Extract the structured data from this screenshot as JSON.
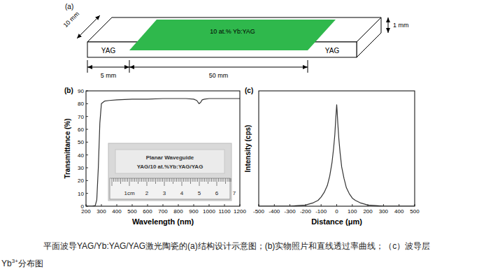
{
  "diagram": {
    "label": "(a)",
    "layer": "10 at.% Yb:YAG",
    "cladding": [
      "YAG",
      "YAG"
    ],
    "dimensions": {
      "width": "10 mm",
      "thickness": "1 mm",
      "cladding_length": "5 mm",
      "core_length": "50 mm"
    },
    "layer_color": "#2fb84c"
  },
  "chart_data": [
    {
      "type": "line",
      "title": "(b)",
      "x_label": "Wavelength (nm)",
      "y_label": "Transmittance (%)",
      "x": [
        200,
        220,
        240,
        260,
        270,
        280,
        290,
        300,
        320,
        350,
        400,
        500,
        600,
        700,
        800,
        850,
        900,
        920,
        935,
        945,
        955,
        970,
        1000,
        1100,
        1200
      ],
      "values": [
        0,
        0,
        0,
        0.5,
        5,
        30,
        65,
        80,
        82,
        82.5,
        83,
        83.5,
        83.5,
        84,
        84,
        84,
        83.5,
        82.5,
        80,
        81,
        83,
        83.5,
        84,
        84,
        84
      ],
      "color": "#333333",
      "xlim": [
        200,
        1200
      ],
      "ylim": [
        0,
        90
      ],
      "xticks": [
        200,
        300,
        400,
        500,
        600,
        700,
        800,
        900,
        1000,
        1100,
        1200
      ],
      "yticks": [
        0,
        10,
        20,
        30,
        40,
        50,
        60,
        70,
        80,
        90
      ],
      "grid": false
    },
    {
      "type": "line",
      "title": "(c)",
      "x_label": "Distance (μm)",
      "y_label": "Intensity (cps)",
      "x": [
        -500,
        -400,
        -300,
        -250,
        -200,
        -150,
        -120,
        -100,
        -80,
        -60,
        -45,
        -30,
        -20,
        -12,
        -6,
        -2,
        0,
        3,
        7,
        14,
        22,
        32,
        47,
        62,
        80,
        100,
        120,
        150,
        200,
        250,
        300,
        400,
        500
      ],
      "values": [
        0,
        0,
        0,
        0.5,
        1,
        3,
        5,
        8,
        12,
        18,
        26,
        38,
        50,
        62,
        76,
        84,
        88,
        82,
        72,
        58,
        46,
        34,
        24,
        16,
        11,
        7,
        5,
        3,
        1,
        0.5,
        0,
        0,
        0
      ],
      "color": "#333333",
      "xlim": [
        -500,
        500
      ],
      "ylim": [
        0,
        100
      ],
      "xticks": [
        -500,
        -400,
        -300,
        -200,
        -100,
        0,
        100,
        200,
        300,
        400,
        500
      ],
      "tick_labels": "x",
      "grid": false
    }
  ],
  "photo_inset": {
    "title": "Planar Waveguide",
    "label": "YAG/10 at.%Yb:YAG/YAG",
    "ruler": [
      "1cm",
      "2",
      "3",
      "4",
      "5",
      "6",
      "7"
    ]
  },
  "caption": {
    "text": "平面波导YAG/Yb:YAG/YAG激光陶瓷的(a)结构设计示意图；(b)实物照片和直线透过率曲线；（c）波导层",
    "ion": "Yb",
    "charge": "3+",
    "tail": "分布图"
  }
}
